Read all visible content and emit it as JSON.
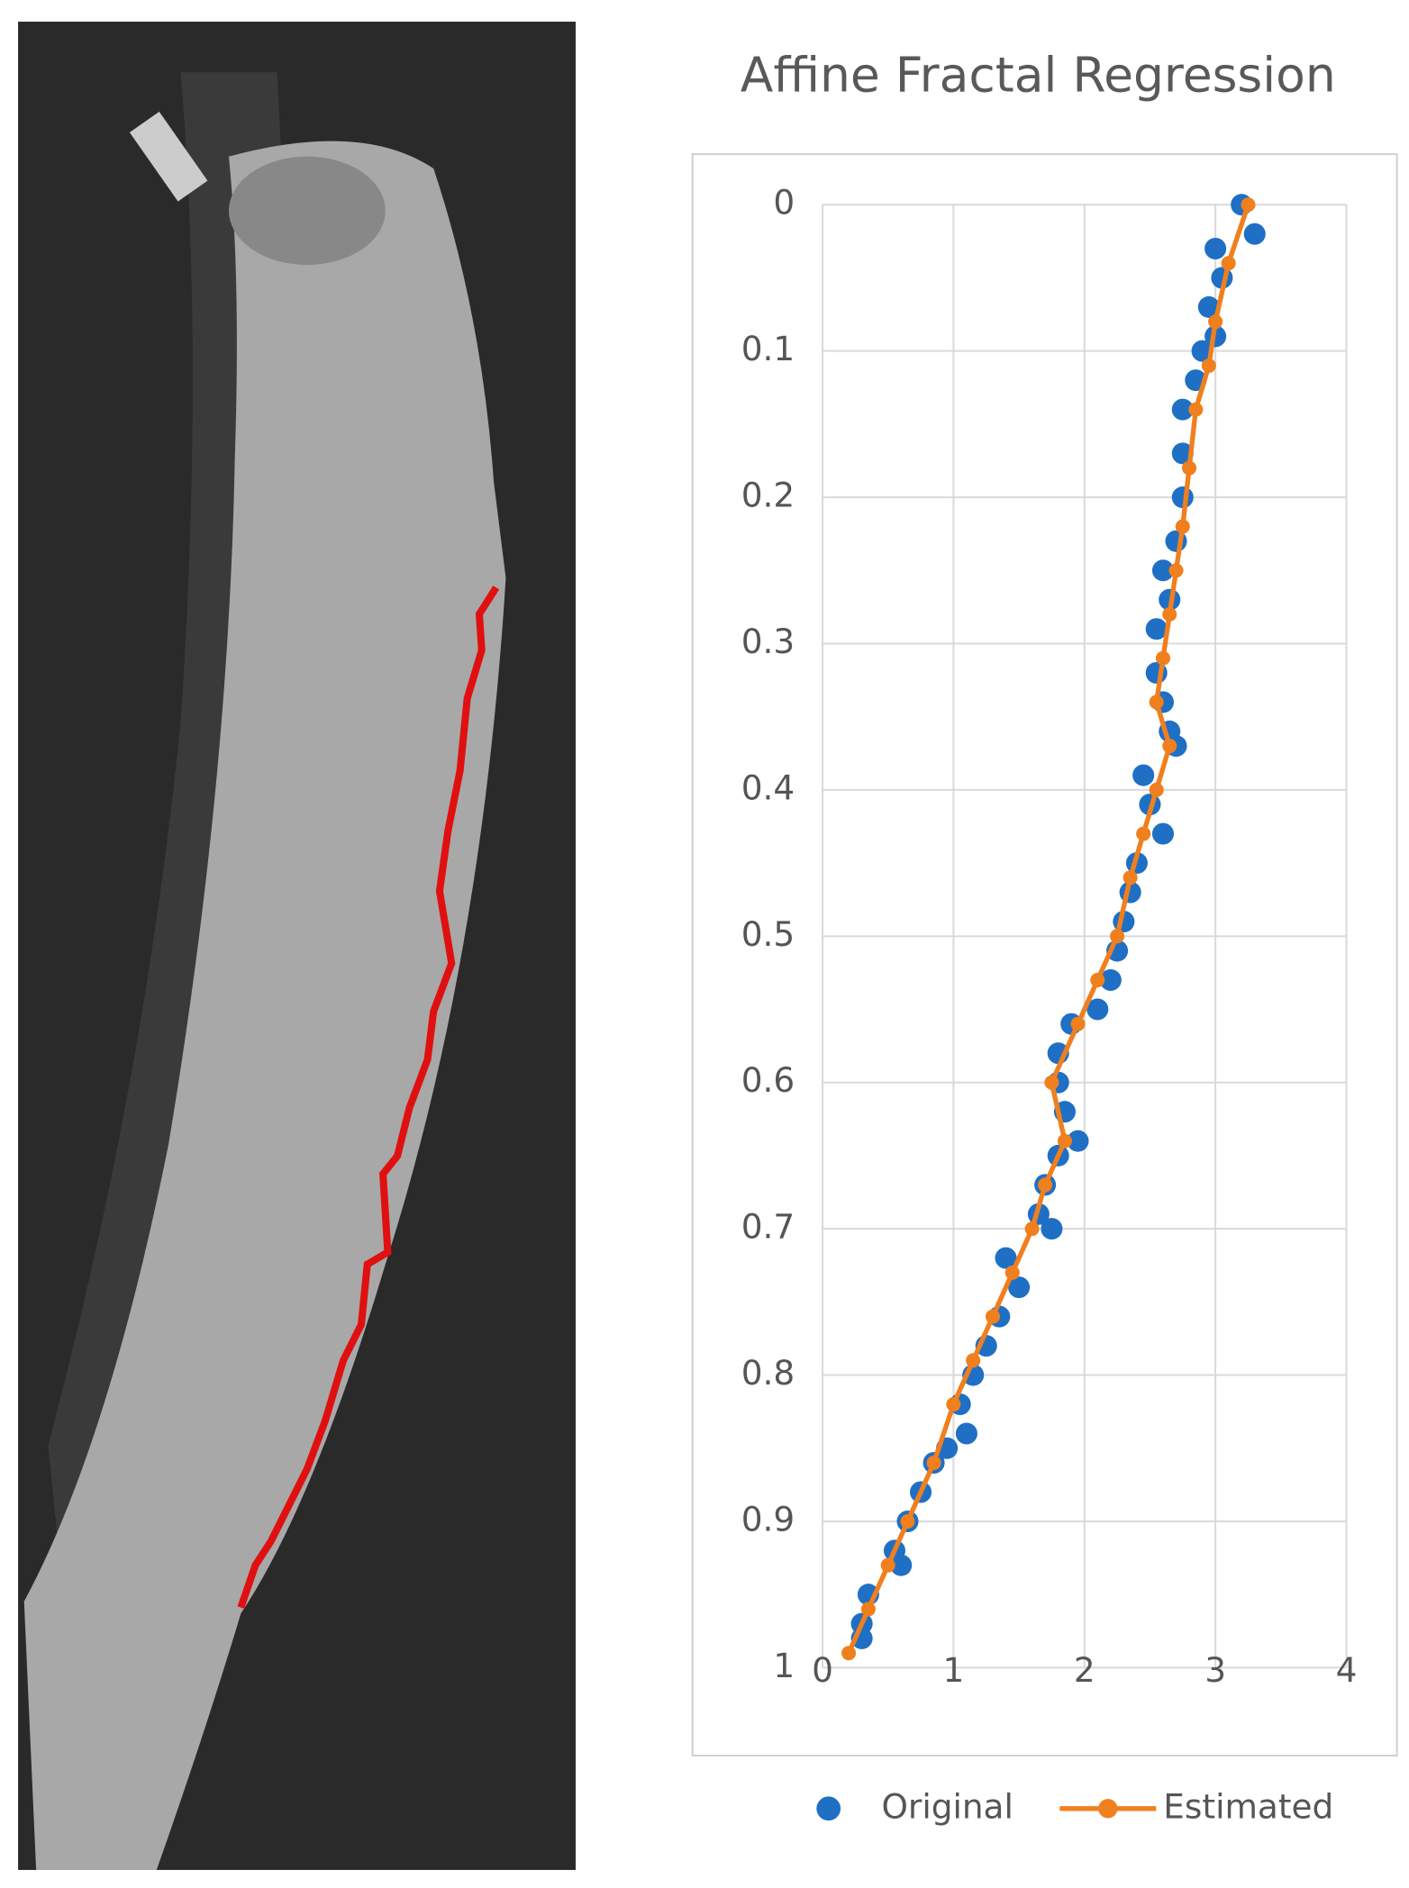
{
  "chart_data": {
    "type": "scatter",
    "title": "Affine Fractal Regression",
    "xlim": [
      0,
      4
    ],
    "ylim": [
      0,
      1
    ],
    "y_inverted": true,
    "grid": true,
    "xticks": [
      0,
      1,
      2,
      3,
      4
    ],
    "yticks": [
      0,
      0.1,
      0.2,
      0.3,
      0.4,
      0.5,
      0.6,
      0.7,
      0.8,
      0.9,
      1
    ],
    "series": [
      {
        "name": "Original",
        "color": "#1f6fc5",
        "style": "markers",
        "x": [
          3.2,
          3.3,
          3.0,
          3.05,
          2.95,
          3.0,
          2.9,
          2.85,
          2.75,
          2.75,
          2.75,
          2.7,
          2.6,
          2.65,
          2.55,
          2.55,
          2.6,
          2.65,
          2.7,
          2.45,
          2.5,
          2.6,
          2.4,
          2.35,
          2.3,
          2.25,
          2.2,
          2.1,
          1.9,
          1.8,
          1.8,
          1.85,
          1.95,
          1.8,
          1.7,
          1.65,
          1.75,
          1.4,
          1.5,
          1.35,
          1.25,
          1.15,
          1.05,
          1.1,
          0.95,
          0.85,
          0.75,
          0.65,
          0.55,
          0.6,
          0.35,
          0.3,
          0.3
        ],
        "values": [
          0.0,
          0.02,
          0.03,
          0.05,
          0.07,
          0.09,
          0.1,
          0.12,
          0.14,
          0.17,
          0.2,
          0.23,
          0.25,
          0.27,
          0.29,
          0.32,
          0.34,
          0.36,
          0.37,
          0.39,
          0.41,
          0.43,
          0.45,
          0.47,
          0.49,
          0.51,
          0.53,
          0.55,
          0.56,
          0.58,
          0.6,
          0.62,
          0.64,
          0.65,
          0.67,
          0.69,
          0.7,
          0.72,
          0.74,
          0.76,
          0.78,
          0.8,
          0.82,
          0.84,
          0.85,
          0.86,
          0.88,
          0.9,
          0.92,
          0.93,
          0.95,
          0.97,
          0.98
        ]
      },
      {
        "name": "Estimated",
        "color": "#f07f1e",
        "style": "line-markers",
        "x": [
          3.25,
          3.1,
          3.0,
          2.95,
          2.85,
          2.8,
          2.75,
          2.7,
          2.65,
          2.6,
          2.55,
          2.65,
          2.55,
          2.45,
          2.35,
          2.25,
          2.1,
          1.95,
          1.75,
          1.85,
          1.7,
          1.6,
          1.45,
          1.3,
          1.15,
          1.0,
          0.85,
          0.65,
          0.5,
          0.35,
          0.2
        ],
        "values": [
          0.0,
          0.04,
          0.08,
          0.11,
          0.14,
          0.18,
          0.22,
          0.25,
          0.28,
          0.31,
          0.34,
          0.37,
          0.4,
          0.43,
          0.46,
          0.5,
          0.53,
          0.56,
          0.6,
          0.64,
          0.67,
          0.7,
          0.73,
          0.76,
          0.79,
          0.82,
          0.86,
          0.9,
          0.93,
          0.96,
          0.99
        ]
      }
    ],
    "legend": "bottom"
  }
}
